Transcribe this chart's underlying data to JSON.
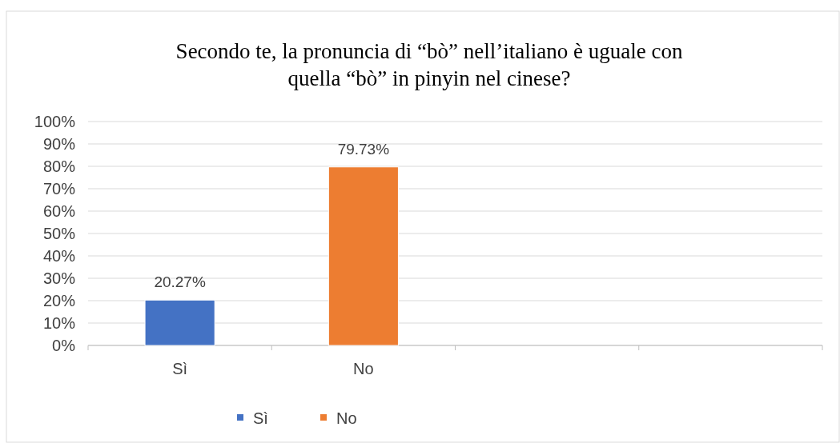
{
  "chart_data": {
    "type": "bar",
    "title": "Secondo te, la pronuncia di “bò” nell’italiano è uguale con\nquella “bò” in pinyin nel cinese?",
    "categories": [
      "Sì",
      "No",
      null,
      null
    ],
    "series": [
      {
        "name": "Sì",
        "color": "#4472c4",
        "values": [
          20.27,
          null,
          null,
          null
        ],
        "value_labels": [
          "20.27%",
          null,
          null,
          null
        ]
      },
      {
        "name": "No",
        "color": "#ed7d31",
        "values": [
          null,
          79.73,
          null,
          null
        ],
        "value_labels": [
          null,
          "79.73%",
          null,
          null
        ]
      }
    ],
    "ylim": [
      0,
      100
    ],
    "yticks": [
      {
        "value": 0,
        "label": "0%"
      },
      {
        "value": 10,
        "label": "10%"
      },
      {
        "value": 20,
        "label": "20%"
      },
      {
        "value": 30,
        "label": "30%"
      },
      {
        "value": 40,
        "label": "40%"
      },
      {
        "value": 50,
        "label": "50%"
      },
      {
        "value": 60,
        "label": "60%"
      },
      {
        "value": 70,
        "label": "70%"
      },
      {
        "value": 80,
        "label": "80%"
      },
      {
        "value": 90,
        "label": "90%"
      },
      {
        "value": 100,
        "label": "100%"
      }
    ],
    "grid": "y",
    "legend": "bottom"
  }
}
